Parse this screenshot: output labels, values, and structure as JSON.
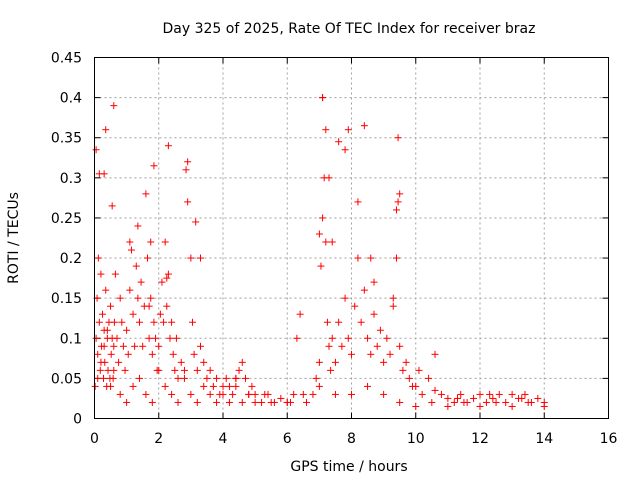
{
  "chart_data": {
    "type": "scatter",
    "title": "Day 325 of 2025, Rate Of TEC Index for receiver braz",
    "xlabel": "GPS time / hours",
    "ylabel": "ROTI / TECUs",
    "xlim": [
      0,
      16
    ],
    "ylim": [
      0,
      0.45
    ],
    "xticks": [
      0,
      2,
      4,
      6,
      8,
      10,
      12,
      14,
      16
    ],
    "yticks": [
      0,
      0.05,
      0.1,
      0.15,
      0.2,
      0.25,
      0.3,
      0.35,
      0.4,
      0.45
    ],
    "xtick_labels": [
      "0",
      "2",
      "4",
      "6",
      "8",
      "10",
      "12",
      "14",
      "16"
    ],
    "ytick_labels": [
      "0",
      "0.05",
      "0.1",
      "0.15",
      "0.2",
      "0.25",
      "0.3",
      "0.35",
      "0.4",
      "0.45"
    ],
    "grid": true,
    "marker": "+",
    "color": "#ff0000",
    "series": [
      {
        "name": "ROTI",
        "x": [
          0.02,
          0.05,
          0.08,
          0.1,
          0.12,
          0.15,
          0.18,
          0.2,
          0.22,
          0.25,
          0.28,
          0.3,
          0.32,
          0.35,
          0.38,
          0.4,
          0.42,
          0.45,
          0.48,
          0.5,
          0.52,
          0.55,
          0.58,
          0.6,
          0.62,
          0.65,
          0.7,
          0.75,
          0.8,
          0.85,
          0.9,
          0.95,
          1.0,
          1.05,
          1.1,
          1.15,
          1.2,
          1.25,
          1.3,
          1.35,
          1.4,
          1.45,
          1.5,
          1.55,
          1.6,
          1.65,
          1.7,
          1.75,
          1.8,
          1.85,
          1.9,
          1.95,
          2.0,
          2.05,
          2.1,
          2.15,
          2.2,
          2.25,
          2.3,
          2.35,
          2.4,
          2.45,
          2.5,
          2.55,
          2.6,
          2.7,
          2.8,
          2.9,
          3.0,
          3.05,
          3.1,
          3.2,
          3.3,
          3.4,
          3.5,
          3.6,
          3.7,
          3.8,
          3.9,
          4.0,
          4.1,
          4.2,
          4.3,
          4.4,
          4.5,
          4.6,
          4.7,
          4.8,
          4.9,
          5.0,
          5.2,
          5.4,
          5.6,
          5.8,
          6.0,
          6.2,
          6.3,
          6.4,
          6.6,
          6.8,
          6.9,
          7.0,
          7.05,
          7.1,
          7.15,
          7.2,
          7.25,
          7.3,
          7.35,
          7.4,
          7.5,
          7.6,
          7.7,
          7.8,
          7.9,
          8.0,
          8.1,
          8.2,
          8.3,
          8.4,
          8.5,
          8.6,
          8.7,
          8.8,
          8.9,
          9.0,
          9.1,
          9.2,
          9.3,
          9.4,
          9.45,
          9.5,
          9.6,
          9.7,
          9.8,
          9.9,
          10.0,
          10.2,
          10.4,
          10.6,
          10.8,
          11.0,
          11.2,
          11.4,
          11.6,
          11.8,
          12.0,
          12.2,
          12.4,
          12.6,
          12.8,
          13.0,
          13.2,
          13.4,
          13.6,
          13.8,
          14.0,
          0.1,
          0.2,
          0.3,
          0.4,
          0.5,
          0.6,
          0.8,
          1.0,
          1.2,
          1.4,
          1.6,
          1.8,
          2.0,
          2.2,
          2.4,
          2.6,
          2.8,
          3.0,
          3.2,
          3.4,
          3.6,
          3.8,
          4.0,
          4.2,
          4.4,
          4.6,
          4.8,
          5.0,
          5.5,
          6.0,
          6.5,
          7.0,
          7.5,
          8.0,
          8.5,
          9.0,
          9.5,
          10.0,
          10.5,
          11.0,
          11.5,
          12.0,
          12.5,
          13.0,
          13.5,
          14.0,
          0.05,
          0.3,
          0.6,
          1.1,
          1.7,
          2.3,
          2.9,
          3.3,
          4.4,
          5.3,
          6.1,
          7.1,
          7.9,
          8.6,
          9.3,
          10.1,
          10.6,
          11.3,
          12.3,
          13.3,
          0.15,
          0.35,
          0.55,
          1.35,
          1.75,
          1.85,
          2.25,
          2.85,
          3.15,
          7.0,
          7.1,
          7.2,
          7.3,
          7.4,
          7.6,
          7.8,
          8.2,
          8.4,
          8.7,
          9.4,
          9.45,
          9.5
        ],
        "y": [
          0.04,
          0.1,
          0.15,
          0.08,
          0.2,
          0.12,
          0.06,
          0.18,
          0.09,
          0.13,
          0.05,
          0.11,
          0.07,
          0.16,
          0.04,
          0.1,
          0.06,
          0.12,
          0.05,
          0.14,
          0.08,
          0.1,
          0.05,
          0.09,
          0.12,
          0.18,
          0.1,
          0.07,
          0.15,
          0.12,
          0.09,
          0.06,
          0.11,
          0.08,
          0.16,
          0.21,
          0.13,
          0.09,
          0.19,
          0.24,
          0.12,
          0.17,
          0.09,
          0.14,
          0.28,
          0.2,
          0.1,
          0.15,
          0.08,
          0.12,
          0.1,
          0.06,
          0.09,
          0.13,
          0.17,
          0.12,
          0.22,
          0.14,
          0.18,
          0.1,
          0.12,
          0.08,
          0.06,
          0.1,
          0.05,
          0.07,
          0.06,
          0.27,
          0.2,
          0.12,
          0.08,
          0.06,
          0.09,
          0.07,
          0.05,
          0.06,
          0.04,
          0.05,
          0.03,
          0.04,
          0.05,
          0.04,
          0.03,
          0.05,
          0.06,
          0.07,
          0.05,
          0.03,
          0.04,
          0.03,
          0.02,
          0.03,
          0.02,
          0.025,
          0.02,
          0.03,
          0.1,
          0.13,
          0.02,
          0.03,
          0.05,
          0.07,
          0.19,
          0.25,
          0.3,
          0.22,
          0.12,
          0.09,
          0.06,
          0.1,
          0.07,
          0.12,
          0.09,
          0.15,
          0.1,
          0.08,
          0.14,
          0.2,
          0.12,
          0.16,
          0.1,
          0.08,
          0.13,
          0.09,
          0.11,
          0.07,
          0.1,
          0.08,
          0.15,
          0.2,
          0.27,
          0.09,
          0.06,
          0.07,
          0.05,
          0.04,
          0.04,
          0.03,
          0.05,
          0.08,
          0.03,
          0.025,
          0.02,
          0.03,
          0.02,
          0.025,
          0.03,
          0.02,
          0.025,
          0.03,
          0.02,
          0.03,
          0.025,
          0.03,
          0.02,
          0.025,
          0.02,
          0.05,
          0.07,
          0.09,
          0.11,
          0.04,
          0.06,
          0.03,
          0.02,
          0.04,
          0.05,
          0.03,
          0.02,
          0.06,
          0.04,
          0.03,
          0.02,
          0.05,
          0.03,
          0.02,
          0.04,
          0.03,
          0.02,
          0.03,
          0.02,
          0.04,
          0.02,
          0.03,
          0.02,
          0.02,
          0.02,
          0.03,
          0.04,
          0.03,
          0.03,
          0.04,
          0.03,
          0.02,
          0.015,
          0.02,
          0.015,
          0.02,
          0.015,
          0.02,
          0.015,
          0.02,
          0.015,
          0.335,
          0.305,
          0.39,
          0.22,
          0.14,
          0.34,
          0.32,
          0.2,
          0.05,
          0.03,
          0.02,
          0.4,
          0.36,
          0.2,
          0.14,
          0.06,
          0.035,
          0.025,
          0.03,
          0.025,
          0.305,
          0.36,
          0.265,
          0.15,
          0.22,
          0.315,
          0.175,
          0.31,
          0.245,
          0.23,
          0.4,
          0.36,
          0.3,
          0.22,
          0.345,
          0.335,
          0.27,
          0.365,
          0.17,
          0.26,
          0.35,
          0.28
        ]
      }
    ]
  }
}
